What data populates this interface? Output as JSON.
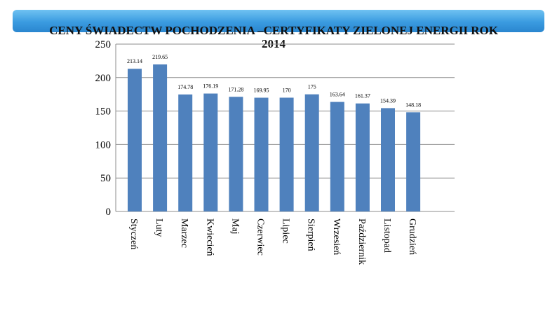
{
  "chart_data": {
    "type": "bar",
    "title": "CENY ŚWIADECTW POCHODZENIA –CERTYFIKATY ZIELONEJ ENERGII ROK 2014",
    "categories": [
      "Styczeń",
      "Luty",
      "Marzec",
      "Kwiecień",
      "Maj",
      "Czerwiec",
      "Lipiec",
      "Sierpień",
      "Wrzesień",
      "Październik",
      "Listopad",
      "Grudzień"
    ],
    "values": [
      213.14,
      219.65,
      174.78,
      176.19,
      171.28,
      169.95,
      170,
      175,
      163.64,
      161.37,
      154.39,
      148.18
    ],
    "value_labels": [
      "213.14",
      "219.65",
      "174.78",
      "176.19",
      "171.28",
      "169.95",
      "170",
      "175",
      "163.64",
      "161.37",
      "154.39",
      "148.18"
    ],
    "ylim": [
      0,
      250
    ],
    "yticks": [
      0,
      50,
      100,
      150,
      200,
      250
    ],
    "grid": true,
    "bar_color": "#4f81bd",
    "xlabel": "",
    "ylabel": ""
  }
}
